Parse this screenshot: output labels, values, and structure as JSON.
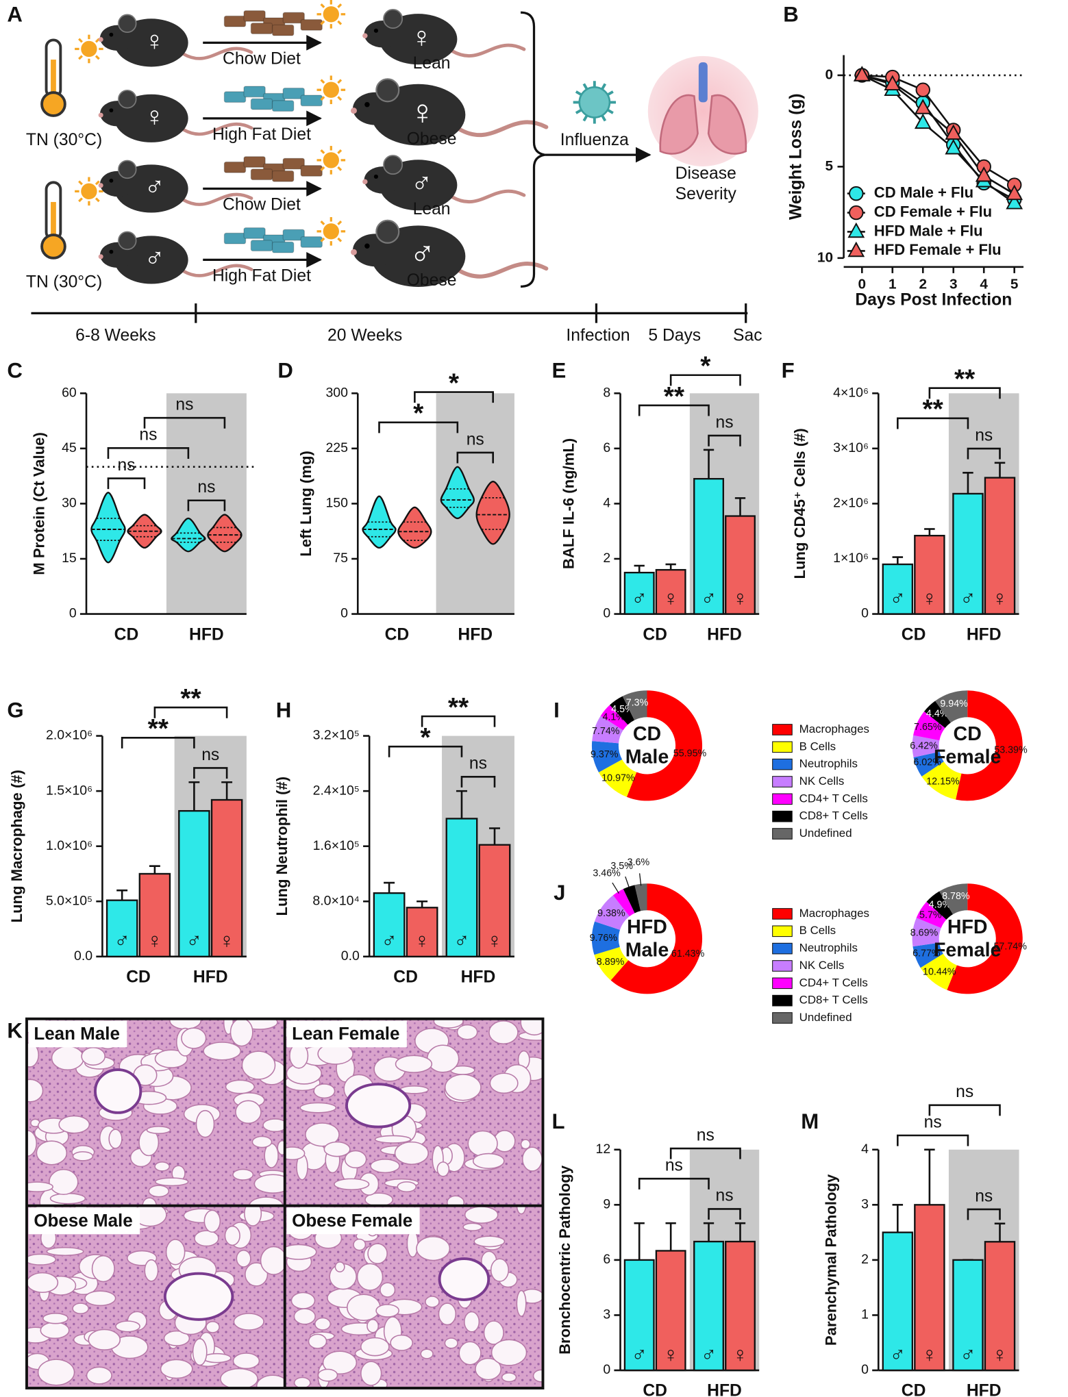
{
  "schematic": {
    "panel": "A",
    "temperature": [
      "TN (30°C)",
      "TN (30°C)"
    ],
    "rows": [
      {
        "sex": "♀",
        "diet": "Chow Diet",
        "food_color": "#8a5a3b",
        "outcome": "Lean"
      },
      {
        "sex": "♀",
        "diet": "High Fat Diet",
        "food_color": "#4a9fb5",
        "outcome": "Obese"
      },
      {
        "sex": "♂",
        "diet": "Chow Diet",
        "food_color": "#8a5a3b",
        "outcome": "Lean"
      },
      {
        "sex": "♂",
        "diet": "High Fat Diet",
        "food_color": "#4a9fb5",
        "outcome": "Obese"
      }
    ],
    "infection": "Influenza",
    "result": [
      "Disease",
      "Severity"
    ],
    "timeline": [
      "6-8 Weeks",
      "20 Weeks",
      "Infection",
      "5 Days",
      "Sac"
    ]
  },
  "chart_data": [
    {
      "panel": "B",
      "type": "line",
      "x": [
        0,
        1,
        2,
        3,
        4,
        5
      ],
      "xlim": [
        -0.6,
        5.3
      ],
      "xticks": [
        0,
        1,
        2,
        3,
        4,
        5
      ],
      "ylim": [
        -1.1,
        10
      ],
      "yticks": [
        0,
        5,
        10
      ],
      "y_reversed": true,
      "reference_line": 0,
      "x_label": "Days Post Infection",
      "y_label": "Weight Loss (g)",
      "legend": "lower left",
      "series": [
        {
          "name": "CD Male + Flu",
          "color": "#2ee8e8",
          "marker": "circle",
          "values": [
            0,
            0.4,
            1.5,
            3.8,
            5.9,
            6.8
          ]
        },
        {
          "name": "CD Female + Flu",
          "color": "#f0605d",
          "marker": "circle",
          "values": [
            0,
            0.1,
            0.8,
            3.0,
            5.0,
            6.0
          ]
        },
        {
          "name": "HFD Male + Flu",
          "color": "#2ee8e8",
          "marker": "triangle",
          "values": [
            0,
            0.8,
            2.6,
            4.0,
            5.8,
            7.0
          ]
        },
        {
          "name": "HFD Female + Flu",
          "color": "#f0605d",
          "marker": "triangle",
          "values": [
            0,
            0.5,
            1.8,
            3.2,
            5.5,
            6.5
          ]
        }
      ]
    },
    {
      "panel": "C",
      "type": "violin",
      "categories": [
        "CD",
        "HFD"
      ],
      "y_label": "M Protein (Ct Value)",
      "ylim": [
        0,
        60
      ],
      "yticks": [
        0,
        15,
        30,
        45,
        60
      ],
      "reference_line": 40,
      "shaded": [
        1
      ],
      "series": [
        {
          "color": "#2ee8e8",
          "min": [
            14,
            17
          ],
          "q1": [
            20,
            19.5
          ],
          "median": [
            23,
            20.5
          ],
          "q3": [
            26,
            22
          ],
          "max": [
            33,
            26
          ]
        },
        {
          "color": "#f0605d",
          "min": [
            18,
            17
          ],
          "q1": [
            21,
            19.5
          ],
          "median": [
            22.5,
            21.5
          ],
          "q3": [
            24,
            23.5
          ],
          "max": [
            27,
            27
          ]
        }
      ],
      "comparisons": [
        {
          "between": [
            0,
            1
          ],
          "label": "ns"
        },
        {
          "between": [
            2,
            3
          ],
          "label": "ns"
        },
        {
          "between": [
            0,
            2
          ],
          "label": "ns"
        },
        {
          "between": [
            1,
            3
          ],
          "label": "ns"
        }
      ]
    },
    {
      "panel": "D",
      "type": "violin",
      "categories": [
        "CD",
        "HFD"
      ],
      "y_label": "Left Lung (mg)",
      "ylim": [
        0,
        300
      ],
      "yticks": [
        0,
        75,
        150,
        225,
        300
      ],
      "shaded": [
        1
      ],
      "series": [
        {
          "color": "#2ee8e8",
          "min": [
            90,
            130
          ],
          "q1": [
            105,
            145
          ],
          "median": [
            115,
            155
          ],
          "q3": [
            125,
            170
          ],
          "max": [
            160,
            200
          ]
        },
        {
          "color": "#f0605d",
          "min": [
            90,
            95
          ],
          "q1": [
            100,
            115
          ],
          "median": [
            112,
            135
          ],
          "q3": [
            125,
            158
          ],
          "max": [
            145,
            180
          ]
        }
      ],
      "comparisons": [
        {
          "between": [
            2,
            3
          ],
          "label": "ns"
        },
        {
          "between": [
            0,
            2
          ],
          "label": "*"
        },
        {
          "between": [
            1,
            3
          ],
          "label": "*"
        }
      ]
    },
    {
      "panel": "E",
      "type": "bar",
      "categories": [
        "CD",
        "HFD"
      ],
      "y_label": "BALF IL-6 (ng/mL)",
      "ylim": [
        0,
        8
      ],
      "yticks": [
        0,
        2,
        4,
        6,
        8
      ],
      "shaded": [
        1
      ],
      "series": [
        {
          "name": "♂",
          "color": "#2ee8e8",
          "values": [
            1.5,
            4.9
          ],
          "errors": [
            0.25,
            1.05
          ]
        },
        {
          "name": "♀",
          "color": "#f0605d",
          "values": [
            1.6,
            3.55
          ],
          "errors": [
            0.2,
            0.65
          ]
        }
      ],
      "comparisons": [
        {
          "between": [
            2,
            3
          ],
          "label": "ns"
        },
        {
          "between": [
            0,
            2
          ],
          "label": "**"
        },
        {
          "between": [
            1,
            3
          ],
          "label": "*"
        }
      ]
    },
    {
      "panel": "F",
      "type": "bar",
      "categories": [
        "CD",
        "HFD"
      ],
      "y_label": "Lung CD45⁺ Cells (#)",
      "ylim": [
        0,
        4000000
      ],
      "yticks": [
        0,
        {
          "value": 1000000,
          "label": "1×10⁶"
        },
        {
          "value": 2000000,
          "label": "2×10⁶"
        },
        {
          "value": 3000000,
          "label": "3×10⁶"
        },
        {
          "value": 4000000,
          "label": "4×10⁶"
        }
      ],
      "shaded": [
        1
      ],
      "series": [
        {
          "name": "♂",
          "color": "#2ee8e8",
          "values": [
            900000,
            2180000
          ],
          "errors": [
            130000,
            380000
          ]
        },
        {
          "name": "♀",
          "color": "#f0605d",
          "values": [
            1420000,
            2470000
          ],
          "errors": [
            120000,
            270000
          ]
        }
      ],
      "comparisons": [
        {
          "between": [
            2,
            3
          ],
          "label": "ns"
        },
        {
          "between": [
            0,
            2
          ],
          "label": "**"
        },
        {
          "between": [
            1,
            3
          ],
          "label": "**"
        }
      ]
    },
    {
      "panel": "G",
      "type": "bar",
      "categories": [
        "CD",
        "HFD"
      ],
      "y_label": "Lung Macrophage (#)",
      "ylim": [
        0,
        2000000
      ],
      "yticks": [
        {
          "value": 0,
          "label": "0.0"
        },
        {
          "value": 500000,
          "label": "5.0×10⁵"
        },
        {
          "value": 1000000,
          "label": "1.0×10⁶"
        },
        {
          "value": 1500000,
          "label": "1.5×10⁶"
        },
        {
          "value": 2000000,
          "label": "2.0×10⁶"
        }
      ],
      "shaded": [
        1
      ],
      "series": [
        {
          "name": "♂",
          "color": "#2ee8e8",
          "values": [
            510000,
            1320000
          ],
          "errors": [
            90000,
            260000
          ]
        },
        {
          "name": "♀",
          "color": "#f0605d",
          "values": [
            750000,
            1420000
          ],
          "errors": [
            70000,
            160000
          ]
        }
      ],
      "comparisons": [
        {
          "between": [
            2,
            3
          ],
          "label": "ns"
        },
        {
          "between": [
            0,
            2
          ],
          "label": "**"
        },
        {
          "between": [
            1,
            3
          ],
          "label": "**"
        }
      ]
    },
    {
      "panel": "H",
      "type": "bar",
      "categories": [
        "CD",
        "HFD"
      ],
      "y_label": "Lung Neutrophil (#)",
      "ylim": [
        0,
        320000
      ],
      "yticks": [
        {
          "value": 0,
          "label": "0.0"
        },
        {
          "value": 80000,
          "label": "8.0×10⁴"
        },
        {
          "value": 160000,
          "label": "1.6×10⁵"
        },
        {
          "value": 240000,
          "label": "2.4×10⁵"
        },
        {
          "value": 320000,
          "label": "3.2×10⁵"
        }
      ],
      "shaded": [
        1
      ],
      "series": [
        {
          "name": "♂",
          "color": "#2ee8e8",
          "values": [
            92000,
            200000
          ],
          "errors": [
            15000,
            40000
          ]
        },
        {
          "name": "♀",
          "color": "#f0605d",
          "values": [
            71000,
            162000
          ],
          "errors": [
            9000,
            24000
          ]
        }
      ],
      "comparisons": [
        {
          "between": [
            2,
            3
          ],
          "label": "ns"
        },
        {
          "between": [
            0,
            2
          ],
          "label": "*"
        },
        {
          "between": [
            1,
            3
          ],
          "label": "**"
        }
      ]
    },
    {
      "panel": "I",
      "type": "donut",
      "categories": [
        "Macrophages",
        "B Cells",
        "Neutrophils",
        "NK Cells",
        "CD4+ T Cells",
        "CD8+ T Cells",
        "Undefined"
      ],
      "colors": [
        "#ff0000",
        "#ffff00",
        "#1e6fe0",
        "#c77dff",
        "#ff00ff",
        "#000000",
        "#666666"
      ],
      "pies": [
        {
          "center_label": [
            "CD",
            "Male"
          ],
          "values": [
            55.95,
            10.97,
            9.37,
            7.74,
            4.1,
            4.5,
            7.3
          ],
          "value_labels": [
            "55.95%",
            "10.97%",
            "9.37%",
            "7.74%",
            "4.1%",
            "4.5%",
            "7.3%"
          ]
        },
        {
          "center_label": [
            "CD",
            "Female"
          ],
          "values": [
            53.39,
            12.15,
            6.02,
            6.42,
            7.65,
            4.4,
            9.94
          ],
          "value_labels": [
            "53.39%",
            "12.15%",
            "6.02%",
            "6.42%",
            "7.65%",
            "4.4%",
            "9.94%"
          ]
        }
      ]
    },
    {
      "panel": "J",
      "type": "donut",
      "categories": [
        "Macrophages",
        "B Cells",
        "Neutrophils",
        "NK Cells",
        "CD4+ T Cells",
        "CD8+ T Cells",
        "Undefined"
      ],
      "colors": [
        "#ff0000",
        "#ffff00",
        "#1e6fe0",
        "#c77dff",
        "#ff00ff",
        "#000000",
        "#666666"
      ],
      "pies": [
        {
          "center_label": [
            "HFD",
            "Male"
          ],
          "values": [
            61.43,
            8.89,
            9.76,
            9.38,
            3.46,
            3.5,
            3.6
          ],
          "value_labels": [
            "61.43%",
            "8.89%",
            "9.76%",
            "9.38%",
            "3.46%",
            "3.5%",
            "3.6%"
          ]
        },
        {
          "center_label": [
            "HFD",
            "Female"
          ],
          "values": [
            57.74,
            10.44,
            6.77,
            8.69,
            5.7,
            4.9,
            8.78
          ],
          "value_labels": [
            "57.74%",
            "10.44%",
            "6.77%",
            "8.69%",
            "5.7%",
            "4.9%",
            "8.78%"
          ]
        }
      ]
    },
    {
      "panel": "L",
      "type": "bar",
      "categories": [
        "CD",
        "HFD"
      ],
      "y_label": "Bronchocentric Pathology",
      "ylim": [
        0,
        12
      ],
      "yticks": [
        0,
        3,
        6,
        9,
        12
      ],
      "shaded": [
        1
      ],
      "series": [
        {
          "name": "♂",
          "color": "#2ee8e8",
          "values": [
            6,
            7
          ],
          "errors": [
            2,
            1
          ]
        },
        {
          "name": "♀",
          "color": "#f0605d",
          "values": [
            6.5,
            7
          ],
          "errors": [
            1.5,
            1
          ]
        }
      ],
      "comparisons": [
        {
          "between": [
            2,
            3
          ],
          "label": "ns"
        },
        {
          "between": [
            0,
            2
          ],
          "label": "ns"
        },
        {
          "between": [
            1,
            3
          ],
          "label": "ns"
        }
      ]
    },
    {
      "panel": "M",
      "type": "bar",
      "categories": [
        "CD",
        "HFD"
      ],
      "y_label": "Parenchymal Pathology",
      "ylim": [
        0,
        4
      ],
      "yticks": [
        0,
        1,
        2,
        3,
        4
      ],
      "shaded": [
        1
      ],
      "series": [
        {
          "name": "♂",
          "color": "#2ee8e8",
          "values": [
            2.5,
            2
          ],
          "errors": [
            0.5,
            0
          ]
        },
        {
          "name": "♀",
          "color": "#f0605d",
          "values": [
            3,
            2.33
          ],
          "errors": [
            1,
            0.33
          ]
        }
      ],
      "comparisons": [
        {
          "between": [
            2,
            3
          ],
          "label": "ns"
        },
        {
          "between": [
            0,
            2
          ],
          "label": "ns"
        },
        {
          "between": [
            1,
            3
          ],
          "label": "ns"
        }
      ]
    }
  ],
  "histology": {
    "panel": "K",
    "images": [
      "Lean Male",
      "Lean Female",
      "Obese Male",
      "Obese Female"
    ]
  }
}
